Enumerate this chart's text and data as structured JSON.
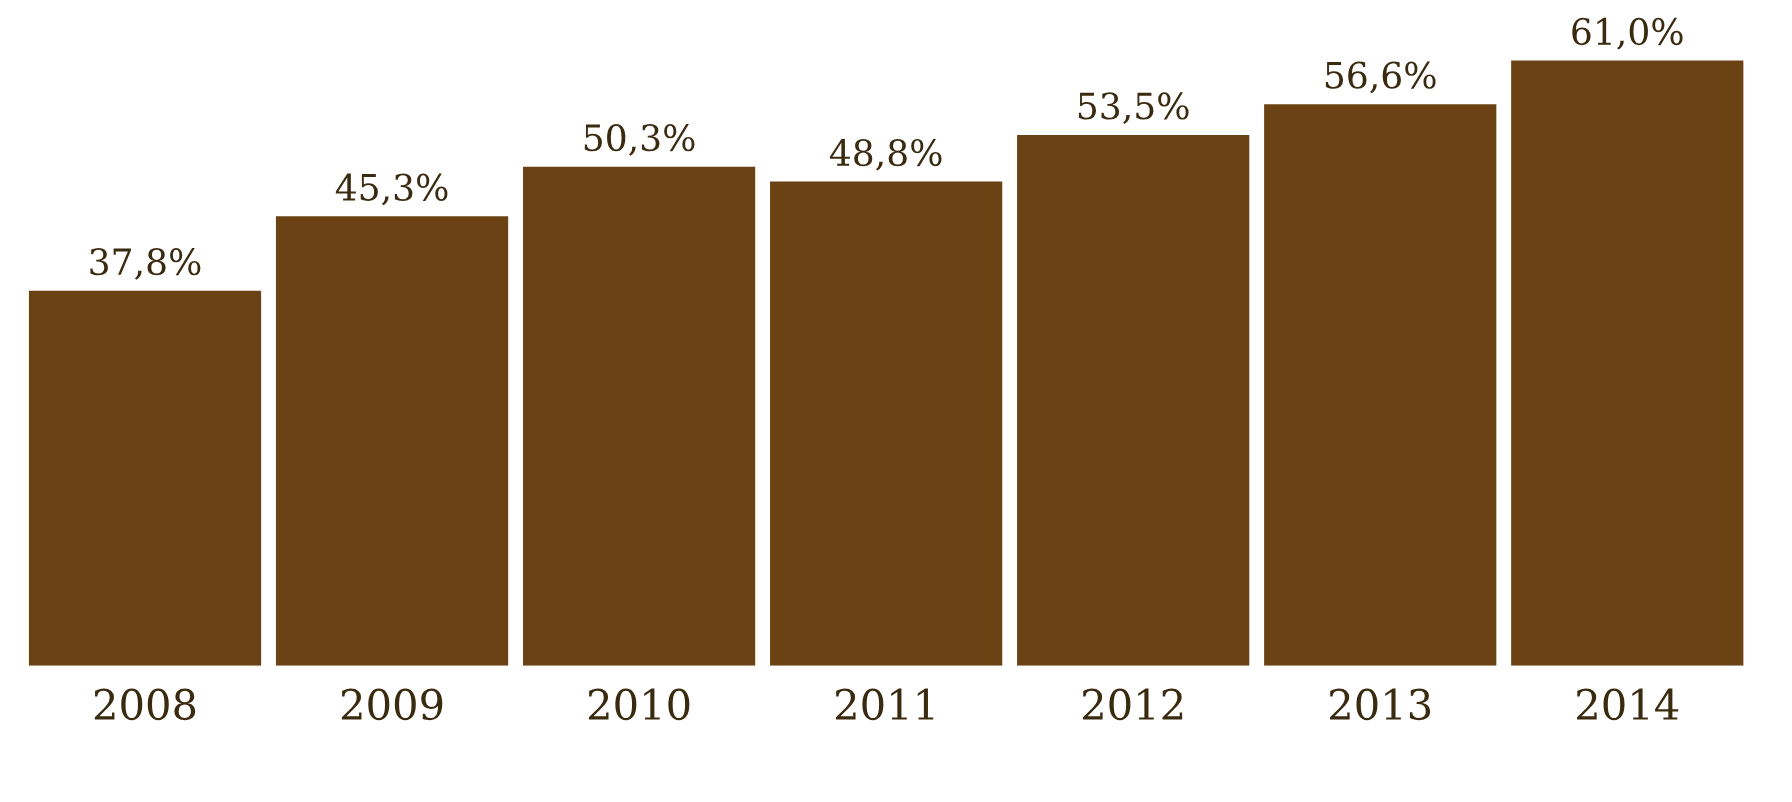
{
  "chart_data": {
    "type": "bar",
    "categories": [
      "2008",
      "2009",
      "2010",
      "2011",
      "2012",
      "2013",
      "2014"
    ],
    "values": [
      37.8,
      45.3,
      50.3,
      48.8,
      53.5,
      56.6,
      61.0
    ],
    "value_labels": [
      "37,8%",
      "45,3%",
      "50,3%",
      "48,8%",
      "53,5%",
      "56,6%",
      "61,0%"
    ],
    "color": "#6b4213",
    "grid": false
  }
}
